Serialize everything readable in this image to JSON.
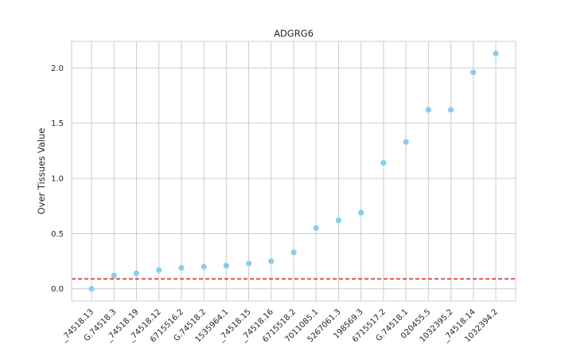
{
  "chart_data": {
    "type": "scatter",
    "title": "ADGRG6",
    "xlabel": "",
    "ylabel": "Over Tissues Value",
    "ylim": [
      -0.11,
      2.24
    ],
    "yticks": [
      0.0,
      0.5,
      1.0,
      1.5,
      2.0
    ],
    "ytick_labels": [
      "0.0",
      "0.5",
      "1.0",
      "1.5",
      "2.0"
    ],
    "categories": [
      "_74518.13",
      "G.74518.3",
      "_74518.19",
      "_74518.12",
      "6715516.2",
      "G.74518.2",
      "1535964.1",
      "_74518.15",
      "_74518.16",
      "6715518.2",
      "7011085.1",
      "5267061.3",
      "198569.3",
      "6715517.2",
      "G.74518.1",
      "020455.5",
      "1032395.2",
      "_74518.14",
      "1032394.2"
    ],
    "values": [
      0.0,
      0.12,
      0.14,
      0.17,
      0.19,
      0.2,
      0.21,
      0.23,
      0.25,
      0.33,
      0.55,
      0.62,
      0.69,
      1.14,
      1.33,
      1.62,
      1.62,
      1.96,
      2.13
    ],
    "threshold": 0.09,
    "colors": {
      "point": "#87ceeb",
      "threshold": "#d62728",
      "grid": "#cccccc",
      "axis": "#cccccc"
    },
    "grid": true,
    "legend": "none"
  }
}
